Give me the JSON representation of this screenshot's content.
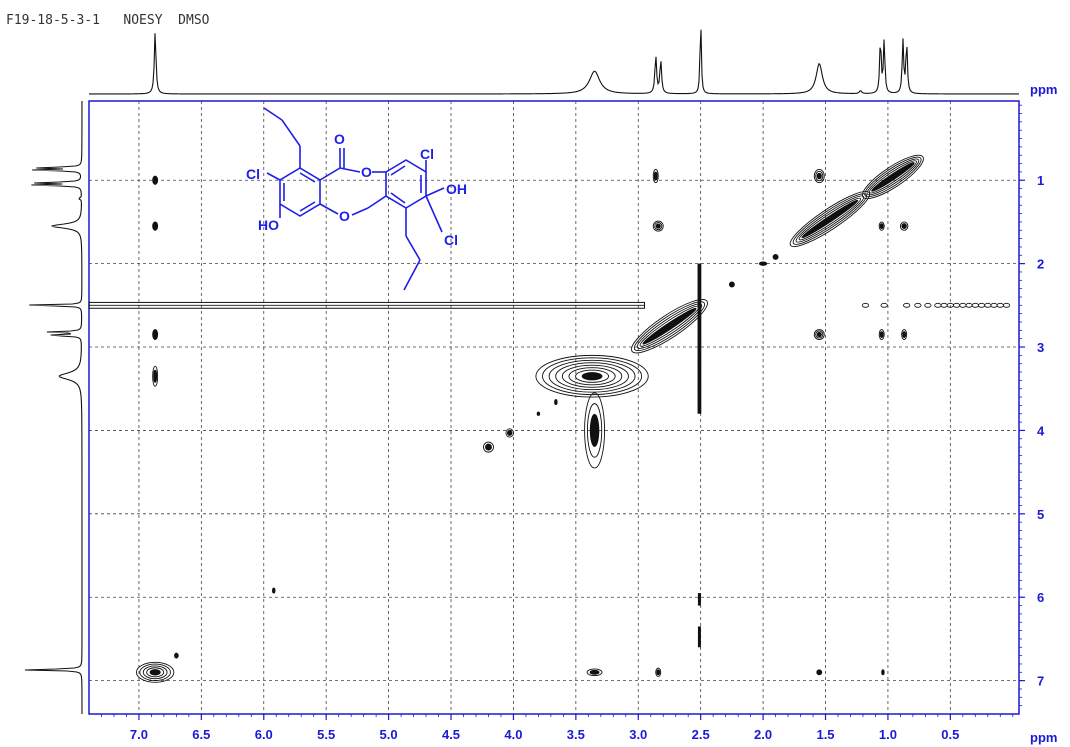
{
  "chart_data": {
    "type": "heatmap",
    "title": "F19-18-5-3-1   NOESY  DMSO",
    "xlabel": "ppm",
    "ylabel": "ppm",
    "xlim": [
      7.4,
      -0.05
    ],
    "ylim": [
      0.05,
      7.4
    ],
    "x_ticks": [
      7.0,
      6.5,
      6.0,
      5.5,
      5.0,
      4.5,
      4.0,
      3.5,
      3.0,
      2.5,
      2.0,
      1.5,
      1.0,
      0.5
    ],
    "y_ticks": [
      1,
      2,
      3,
      4,
      5,
      6,
      7
    ],
    "grid": true,
    "axis_color": "#1a1ad6",
    "ink_color": "#111111",
    "structure_color": "#1e1ee6",
    "spectrum_peaks": [
      {
        "ppm": 6.87,
        "height": 0.82,
        "width": 0.008
      },
      {
        "ppm": 3.35,
        "height": 0.3,
        "width": 0.05
      },
      {
        "ppm": 2.86,
        "height": 0.5,
        "width": 0.008
      },
      {
        "ppm": 2.82,
        "height": 0.44,
        "width": 0.008
      },
      {
        "ppm": 2.5,
        "height": 1.0,
        "width": 0.006
      },
      {
        "ppm": 1.55,
        "height": 0.4,
        "width": 0.03
      },
      {
        "ppm": 1.22,
        "height": 0.04,
        "width": 0.01
      },
      {
        "ppm": 1.06,
        "height": 0.72,
        "width": 0.007
      },
      {
        "ppm": 1.03,
        "height": 0.7,
        "width": 0.007
      },
      {
        "ppm": 0.88,
        "height": 0.7,
        "width": 0.007
      },
      {
        "ppm": 0.85,
        "height": 0.68,
        "width": 0.007
      }
    ],
    "cross_peaks": [
      {
        "x": 6.87,
        "y": 1.0,
        "rx": 0.02,
        "ry": 0.05,
        "levels": 1
      },
      {
        "x": 6.87,
        "y": 1.55,
        "rx": 0.02,
        "ry": 0.05,
        "levels": 1
      },
      {
        "x": 6.87,
        "y": 2.85,
        "rx": 0.02,
        "ry": 0.06,
        "levels": 1
      },
      {
        "x": 6.87,
        "y": 3.35,
        "rx": 0.02,
        "ry": 0.12,
        "levels": 2
      },
      {
        "x": 6.87,
        "y": 6.9,
        "rx": 0.15,
        "ry": 0.12,
        "levels": 5
      },
      {
        "x": 6.7,
        "y": 6.7,
        "rx": 0.015,
        "ry": 0.03,
        "levels": 1
      },
      {
        "x": 5.92,
        "y": 5.92,
        "rx": 0.01,
        "ry": 0.03,
        "levels": 1
      },
      {
        "x": 4.2,
        "y": 4.2,
        "rx": 0.04,
        "ry": 0.06,
        "levels": 2
      },
      {
        "x": 4.03,
        "y": 4.03,
        "rx": 0.03,
        "ry": 0.05,
        "levels": 2
      },
      {
        "x": 3.8,
        "y": 3.8,
        "rx": 0.01,
        "ry": 0.02,
        "levels": 1
      },
      {
        "x": 3.66,
        "y": 3.66,
        "rx": 0.01,
        "ry": 0.03,
        "levels": 1
      },
      {
        "x": 3.37,
        "y": 3.35,
        "rx": 0.45,
        "ry": 0.25,
        "levels": 8
      },
      {
        "x": 3.35,
        "y": 4.0,
        "rx": 0.08,
        "ry": 0.45,
        "levels": 3
      },
      {
        "x": 3.35,
        "y": 6.9,
        "rx": 0.06,
        "ry": 0.04,
        "levels": 2
      },
      {
        "x": 2.86,
        "y": 0.95,
        "rx": 0.02,
        "ry": 0.08,
        "levels": 2
      },
      {
        "x": 2.84,
        "y": 1.55,
        "rx": 0.04,
        "ry": 0.06,
        "levels": 3
      },
      {
        "x": 2.84,
        "y": 6.9,
        "rx": 0.02,
        "ry": 0.05,
        "levels": 2
      },
      {
        "x": 1.55,
        "y": 0.95,
        "rx": 0.04,
        "ry": 0.08,
        "levels": 3
      },
      {
        "x": 1.55,
        "y": 2.85,
        "rx": 0.04,
        "ry": 0.06,
        "levels": 3
      },
      {
        "x": 1.55,
        "y": 6.9,
        "rx": 0.02,
        "ry": 0.03,
        "levels": 1
      },
      {
        "x": 1.05,
        "y": 1.55,
        "rx": 0.02,
        "ry": 0.05,
        "levels": 2
      },
      {
        "x": 0.87,
        "y": 1.55,
        "rx": 0.03,
        "ry": 0.05,
        "levels": 2
      },
      {
        "x": 1.05,
        "y": 2.85,
        "rx": 0.02,
        "ry": 0.06,
        "levels": 2
      },
      {
        "x": 0.87,
        "y": 2.85,
        "rx": 0.02,
        "ry": 0.06,
        "levels": 2
      },
      {
        "x": 1.04,
        "y": 6.9,
        "rx": 0.01,
        "ry": 0.03,
        "levels": 1
      },
      {
        "x": 2.25,
        "y": 2.25,
        "rx": 0.02,
        "ry": 0.03,
        "levels": 1
      },
      {
        "x": 2.0,
        "y": 2.0,
        "rx": 0.03,
        "ry": 0.02,
        "levels": 1
      },
      {
        "x": 1.9,
        "y": 1.92,
        "rx": 0.02,
        "ry": 0.03,
        "levels": 1
      }
    ],
    "diagonal_ridges": [
      {
        "x1": 3.05,
        "y1": 3.05,
        "x2": 2.45,
        "y2": 2.45,
        "halfwidth": 0.09,
        "levels": 5
      },
      {
        "x1": 1.78,
        "y1": 1.78,
        "x2": 1.15,
        "y2": 1.15,
        "halfwidth": 0.08,
        "levels": 5
      },
      {
        "x1": 1.2,
        "y1": 1.2,
        "x2": 0.72,
        "y2": 0.72,
        "halfwidth": 0.08,
        "levels": 5
      }
    ],
    "streaks": [
      {
        "orient": "h",
        "at": 2.5,
        "from": 7.4,
        "to": 2.95,
        "halfwidth": 0.035
      },
      {
        "orient": "v",
        "at": 2.51,
        "from": 2.0,
        "to": 3.8,
        "halfwidth": 0.015
      },
      {
        "orient": "v",
        "at": 2.51,
        "from": 5.95,
        "to": 6.1,
        "halfwidth": 0.012
      },
      {
        "orient": "v",
        "at": 2.51,
        "from": 6.35,
        "to": 6.6,
        "halfwidth": 0.012
      }
    ],
    "t1_noise_x": [
      0.05,
      0.1,
      0.15,
      0.2,
      0.25,
      0.3,
      0.35,
      0.4,
      0.45,
      0.5,
      0.55,
      0.6,
      0.68,
      0.76,
      0.85,
      1.03,
      1.18
    ],
    "structure": {
      "labels": [
        "Cl",
        "O",
        "O",
        "Cl",
        "OH",
        "HO",
        "O",
        "Cl"
      ]
    }
  }
}
